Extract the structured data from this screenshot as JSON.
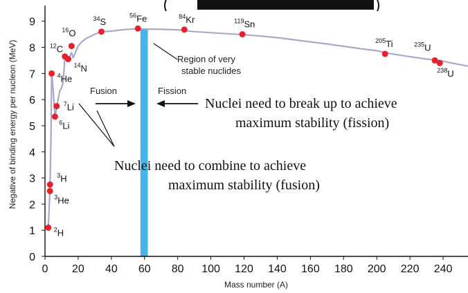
{
  "chart_data": {
    "type": "line",
    "xlabel": "Mass number (A)",
    "ylabel": "Negative of binding energy per nucleon (MeV)",
    "xlim": [
      0,
      255
    ],
    "ylim": [
      0,
      9.6
    ],
    "x_ticks": [
      "0",
      "20",
      "40",
      "60",
      "80",
      "100",
      "120",
      "140",
      "160",
      "180",
      "200",
      "220",
      "240"
    ],
    "y_ticks": [
      "0",
      "1",
      "2",
      "3",
      "4",
      "5",
      "6",
      "7",
      "8",
      "9"
    ],
    "curve": {
      "x": [
        2,
        3,
        3.6,
        4,
        5,
        6,
        7,
        8,
        9,
        10,
        11,
        12,
        13,
        14,
        15,
        16,
        17,
        18,
        19,
        20,
        22,
        25,
        30,
        34,
        40,
        45,
        50,
        56,
        60,
        70,
        80,
        90,
        100,
        110,
        120,
        130,
        140,
        150,
        160,
        170,
        180,
        190,
        200,
        205,
        210,
        220,
        230,
        235,
        238,
        245,
        255
      ],
      "y": [
        1.1,
        2.6,
        4.5,
        7.05,
        6.3,
        5.35,
        5.65,
        6.05,
        6.35,
        6.45,
        6.7,
        7.65,
        7.5,
        7.55,
        7.65,
        7.8,
        7.6,
        7.75,
        7.9,
        8.05,
        8.2,
        8.35,
        8.5,
        8.6,
        8.62,
        8.66,
        8.69,
        8.71,
        8.7,
        8.69,
        8.67,
        8.6,
        8.56,
        8.52,
        8.48,
        8.43,
        8.37,
        8.29,
        8.21,
        8.13,
        8.04,
        7.95,
        7.87,
        7.8,
        7.74,
        7.64,
        7.55,
        7.52,
        7.5,
        7.4,
        7.28
      ],
      "color": "#a6a9cc"
    },
    "points": [
      {
        "A": 2,
        "y": 1.1,
        "sup": "2",
        "sym": "H",
        "dx": 8,
        "dy": 12
      },
      {
        "A": 3,
        "y": 2.5,
        "sup": "3",
        "sym": "He",
        "dx": 6,
        "dy": 18
      },
      {
        "A": 3,
        "y": 2.75,
        "sup": "3",
        "sym": "H",
        "dx": 10,
        "dy": -4
      },
      {
        "A": 6,
        "y": 5.35,
        "sup": "6",
        "sym": "Li",
        "dx": 6,
        "dy": 18
      },
      {
        "A": 7,
        "y": 5.75,
        "sup": "7",
        "sym": "Li",
        "dx": 10,
        "dy": 6
      },
      {
        "A": 4,
        "y": 7.0,
        "sup": "4",
        "sym": "He",
        "dx": 8,
        "dy": 12
      },
      {
        "A": 12,
        "y": 7.65,
        "sup": "12",
        "sym": "C",
        "dx": -22,
        "dy": -6
      },
      {
        "A": 14,
        "y": 7.55,
        "sup": "14",
        "sym": "N",
        "dx": 8,
        "dy": 18
      },
      {
        "A": 16,
        "y": 8.05,
        "sup": "16",
        "sym": "O",
        "dx": -14,
        "dy": -14
      },
      {
        "A": 34,
        "y": 8.6,
        "sup": "34",
        "sym": "S",
        "dx": -12,
        "dy": -10
      },
      {
        "A": 56,
        "y": 8.72,
        "sup": "56",
        "sym": "Fe",
        "dx": -12,
        "dy": -10
      },
      {
        "A": 84,
        "y": 8.68,
        "sup": "84",
        "sym": "Kr",
        "dx": -8,
        "dy": -10
      },
      {
        "A": 119,
        "y": 8.5,
        "sup": "119",
        "sym": "Sn",
        "dx": -12,
        "dy": -10
      },
      {
        "A": 205,
        "y": 7.75,
        "sup": "205",
        "sym": "Ti",
        "dx": -14,
        "dy": -10
      },
      {
        "A": 235,
        "y": 7.5,
        "sup": "235",
        "sym": "U",
        "dx": -30,
        "dy": -14
      },
      {
        "A": 238,
        "y": 7.4,
        "sup": "238",
        "sym": "U",
        "dx": -4,
        "dy": 20
      }
    ],
    "point_color": "#e8202a",
    "band": {
      "x_from": 57.5,
      "x_to": 62,
      "color": "#45b4ea"
    },
    "band_label": [
      "Region of very",
      "stable nuclides"
    ],
    "fusion_label": "Fusion",
    "fission_label": "Fission",
    "fission_note": [
      "Nuclei need to break up to achieve",
      "maximum stability (fission)"
    ],
    "fusion_note": [
      "Nuclei need to combine to achieve",
      "maximum stability (fusion)"
    ]
  }
}
